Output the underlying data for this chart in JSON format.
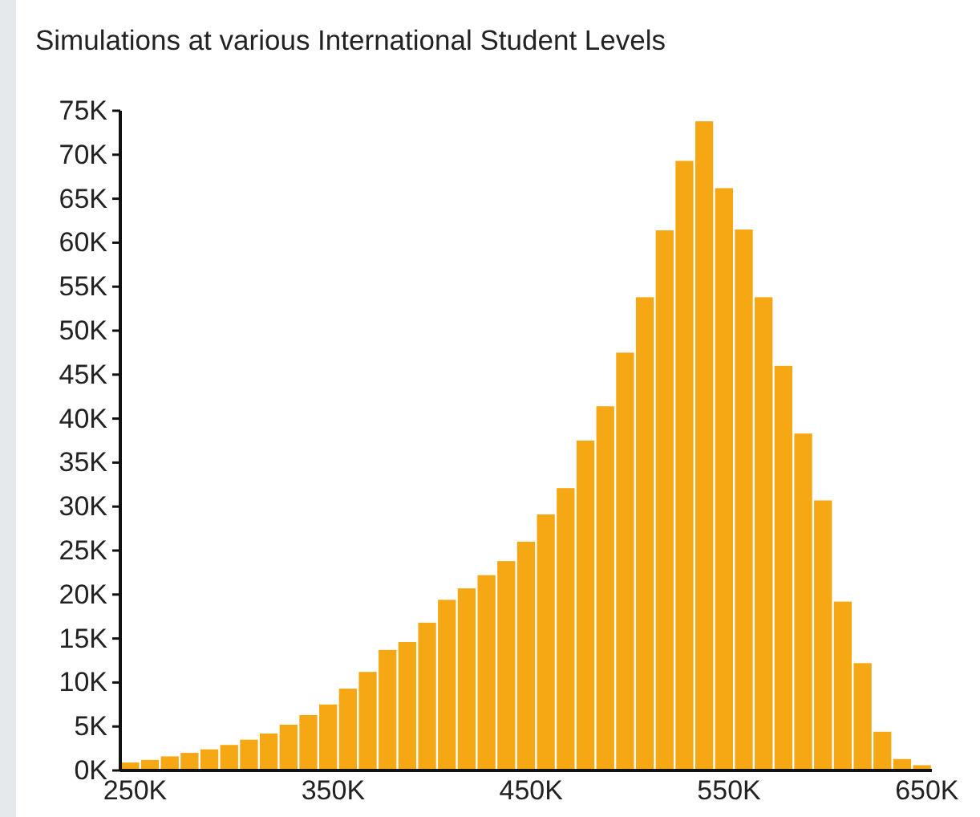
{
  "chart_data": {
    "type": "histogram",
    "title": "Simulations at various International Student Levels",
    "color": "#f6a714",
    "bins": [
      242500,
      252500,
      262500,
      272500,
      282500,
      292500,
      302500,
      312500,
      322500,
      332500,
      342500,
      352500,
      362500,
      372500,
      382500,
      392500,
      402500,
      412500,
      422500,
      432500,
      442500,
      452500,
      462500,
      472500,
      482500,
      492500,
      502500,
      512500,
      522500,
      532500,
      542500,
      552500,
      562500,
      572500,
      582500,
      592500,
      602500,
      612500,
      622500,
      632500,
      642500,
      652500
    ],
    "values": [
      900,
      1200,
      1600,
      2000,
      2400,
      2900,
      3500,
      4200,
      5200,
      6300,
      7500,
      9300,
      11200,
      13700,
      14600,
      16800,
      19400,
      20700,
      22200,
      23800,
      26000,
      29100,
      32100,
      37500,
      41400,
      47500,
      53800,
      61400,
      69300,
      73800,
      66200,
      61500,
      53800,
      46000,
      38300,
      30700,
      19200,
      12200,
      4400,
      1300,
      600
    ],
    "xlim": [
      242500,
      652500
    ],
    "xticks": [
      {
        "value": 250000,
        "label": "250K"
      },
      {
        "value": 350000,
        "label": "350K"
      },
      {
        "value": 450000,
        "label": "450K"
      },
      {
        "value": 550000,
        "label": "550K"
      },
      {
        "value": 650000,
        "label": "650K"
      }
    ],
    "ylim": [
      0,
      75000
    ],
    "yticks": [
      {
        "value": 0,
        "label": "0K"
      },
      {
        "value": 5000,
        "label": "5K"
      },
      {
        "value": 10000,
        "label": "10K"
      },
      {
        "value": 15000,
        "label": "15K"
      },
      {
        "value": 20000,
        "label": "20K"
      },
      {
        "value": 25000,
        "label": "25K"
      },
      {
        "value": 30000,
        "label": "30K"
      },
      {
        "value": 35000,
        "label": "35K"
      },
      {
        "value": 40000,
        "label": "40K"
      },
      {
        "value": 45000,
        "label": "45K"
      },
      {
        "value": 50000,
        "label": "50K"
      },
      {
        "value": 55000,
        "label": "55K"
      },
      {
        "value": 60000,
        "label": "60K"
      },
      {
        "value": 65000,
        "label": "65K"
      },
      {
        "value": 70000,
        "label": "70K"
      },
      {
        "value": 75000,
        "label": "75K"
      }
    ]
  }
}
